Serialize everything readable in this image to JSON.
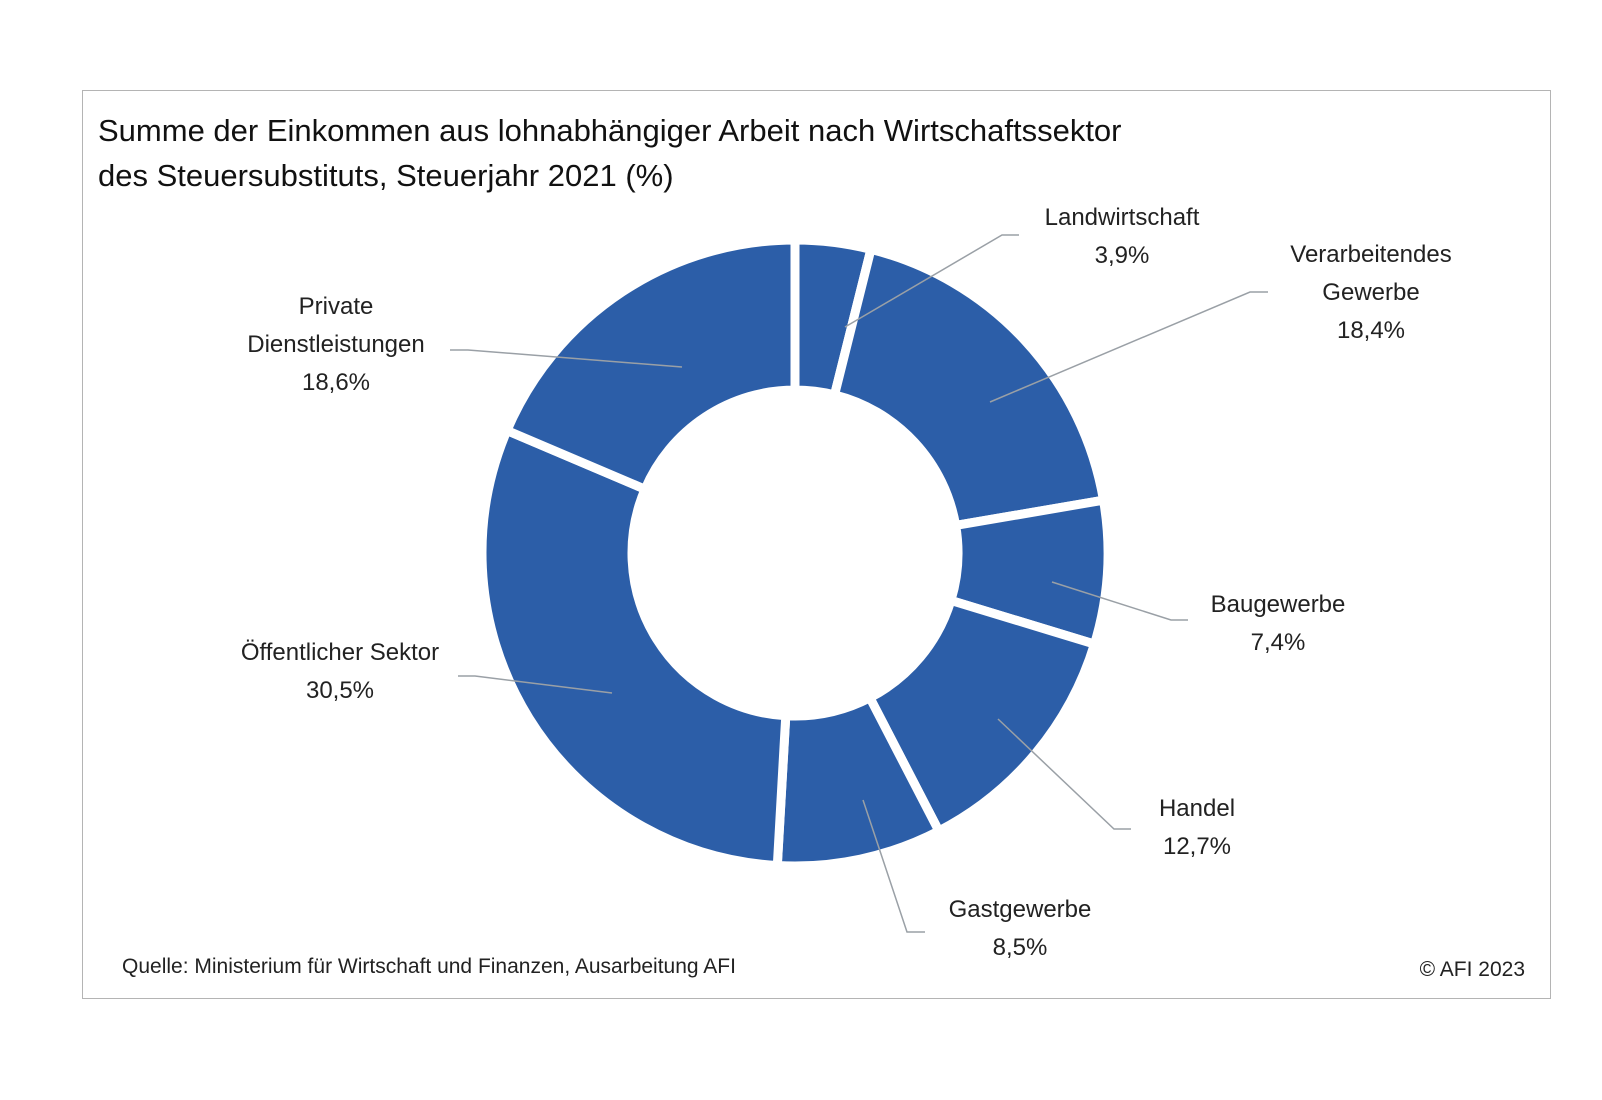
{
  "title": {
    "line1": "Summe der Einkommen aus lohnabhängiger Arbeit nach Wirtschaftssektor",
    "line2": "des Steuersubstituts, Steuerjahr 2021 (%)"
  },
  "source": "Quelle: Ministerium für Wirtschaft und Finanzen, Ausarbeitung  AFI",
  "copyright": "© AFI 2023",
  "colors": {
    "slice": "#2c5ea8",
    "leader": "#9aa0a6",
    "frame": "#b4b4b4"
  },
  "chart_data": {
    "type": "pie",
    "variant": "donut",
    "unit": "%",
    "slices": [
      {
        "label": "Landwirtschaft",
        "value": 3.9,
        "display": "3,9%"
      },
      {
        "label": "Verarbeitendes Gewerbe",
        "value": 18.4,
        "display": "18,4%"
      },
      {
        "label": "Baugewerbe",
        "value": 7.4,
        "display": "7,4%"
      },
      {
        "label": "Handel",
        "value": 12.7,
        "display": "12,7%"
      },
      {
        "label": "Gastgewerbe",
        "value": 8.5,
        "display": "8,5%"
      },
      {
        "label": "Öffentlicher Sektor",
        "value": 30.5,
        "display": "30,5%"
      },
      {
        "label": "Private Dienstleistungen",
        "value": 18.6,
        "display": "18,6%"
      }
    ],
    "legend": "none",
    "data_labels": "outside with leader lines"
  }
}
